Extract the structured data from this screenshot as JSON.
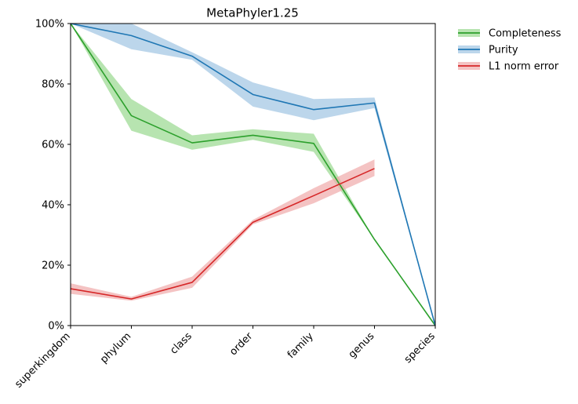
{
  "chart_data": {
    "type": "line",
    "title": "MetaPhyler1.25",
    "xlabel": "",
    "ylabel": "",
    "categories": [
      "superkingdom",
      "phylum",
      "class",
      "order",
      "family",
      "genus",
      "species"
    ],
    "ylim": [
      0,
      100
    ],
    "yticks": [
      "0%",
      "20%",
      "40%",
      "60%",
      "80%",
      "100%"
    ],
    "grid": false,
    "legend_position": "outside-top-right",
    "series": [
      {
        "name": "Completeness",
        "color": "#2ca02c",
        "band_color": "#98d98e",
        "values": [
          100,
          69.5,
          60.5,
          63,
          60.3,
          28.5,
          0
        ],
        "lower": [
          100,
          64.5,
          58.2,
          61.5,
          57.5,
          28.5,
          0
        ],
        "upper": [
          100,
          75,
          63,
          65,
          63.5,
          28.5,
          0
        ]
      },
      {
        "name": "Purity",
        "color": "#1f77b4",
        "band_color": "#9fc5e3",
        "values": [
          100,
          96,
          89.2,
          76.5,
          71.5,
          73.7,
          0
        ],
        "lower": [
          100,
          91.5,
          88,
          72.5,
          68,
          72,
          0
        ],
        "upper": [
          100,
          100,
          90.5,
          80.5,
          75,
          75.5,
          0
        ]
      },
      {
        "name": "L1 norm error",
        "color": "#d62728",
        "band_color": "#f0a9aa",
        "values": [
          12.2,
          8.8,
          14.3,
          34.2,
          43,
          52,
          null
        ],
        "lower": [
          10.5,
          8.2,
          12.5,
          33.5,
          40.5,
          49.5,
          null
        ],
        "upper": [
          14,
          9.5,
          16.2,
          35,
          45.5,
          55,
          null
        ]
      }
    ]
  }
}
